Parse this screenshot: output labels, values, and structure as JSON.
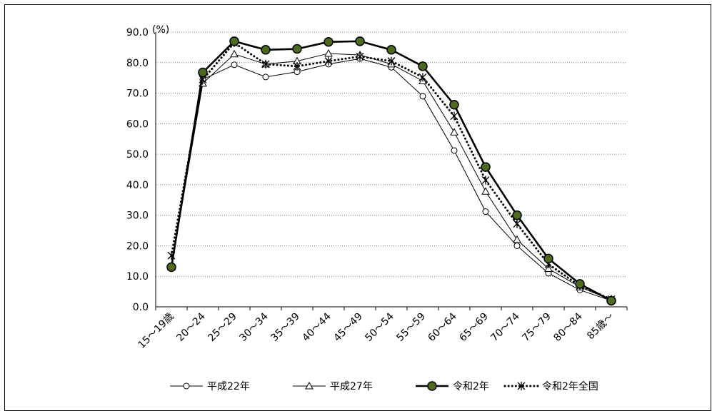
{
  "chart_data": {
    "type": "line",
    "ylabel_unit": "(%)",
    "ylim": [
      0,
      90
    ],
    "yticks": [
      "0.0",
      "10.0",
      "20.0",
      "30.0",
      "40.0",
      "50.0",
      "60.0",
      "70.0",
      "80.0",
      "90.0"
    ],
    "categories": [
      "15～19歳",
      "20～24",
      "25～29",
      "30～34",
      "35～39",
      "40～44",
      "45～49",
      "50～54",
      "55～59",
      "60～64",
      "65～69",
      "70～74",
      "75～79",
      "80～84",
      "85歳～"
    ],
    "grid": "horizontal-dotted",
    "legend": "bottom",
    "series": [
      {
        "name": "平成22年",
        "marker": "circle-open",
        "style": "thin",
        "color": "#000000",
        "values": [
          13.0,
          74.5,
          79.3,
          75.3,
          77.0,
          79.5,
          81.3,
          78.5,
          69.0,
          51.2,
          31.2,
          20.0,
          11.0,
          5.5,
          2.0
        ]
      },
      {
        "name": "平成27年",
        "marker": "triangle-open",
        "style": "thin",
        "color": "#000000",
        "values": [
          13.0,
          73.2,
          82.8,
          79.5,
          80.5,
          83.0,
          82.5,
          79.5,
          74.0,
          57.2,
          37.8,
          22.0,
          12.5,
          6.5,
          2.2
        ]
      },
      {
        "name": "令和2年",
        "marker": "circle-filled",
        "style": "thick",
        "color": "#000000",
        "marker_fill": "#4d6b1f",
        "values": [
          13.0,
          76.8,
          87.0,
          84.2,
          84.5,
          86.8,
          87.0,
          84.2,
          78.8,
          66.2,
          45.8,
          30.0,
          15.8,
          7.5,
          2.0
        ]
      },
      {
        "name": "令和2年全国",
        "marker": "asterisk",
        "style": "dotted",
        "color": "#000000",
        "values": [
          16.8,
          74.5,
          86.5,
          79.5,
          78.8,
          80.5,
          82.0,
          80.5,
          75.2,
          62.5,
          41.5,
          27.2,
          14.0,
          6.8,
          2.5
        ]
      }
    ]
  }
}
